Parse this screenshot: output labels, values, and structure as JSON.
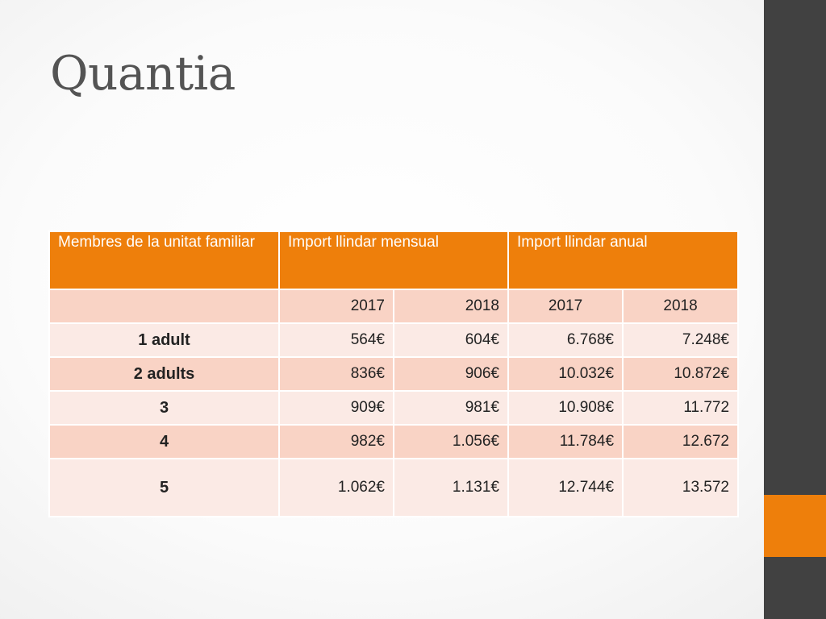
{
  "slide": {
    "title": "Quantia"
  },
  "table": {
    "headers": [
      "Membres de la unitat familiar",
      "Import llindar mensual",
      "Import llindar anual"
    ],
    "years": [
      "",
      "2017",
      "2018",
      "2017",
      "2018"
    ],
    "rows": [
      {
        "label": "1 adult",
        "values": [
          "564€",
          "604€",
          "6.768€",
          "7.248€"
        ]
      },
      {
        "label": "2 adults",
        "values": [
          "836€",
          "906€",
          "10.032€",
          "10.872€"
        ]
      },
      {
        "label": "3",
        "values": [
          "909€",
          "981€",
          "10.908€",
          "11.772"
        ]
      },
      {
        "label": "4",
        "values": [
          "982€",
          "1.056€",
          "11.784€",
          "12.672"
        ]
      },
      {
        "label": "5",
        "values": [
          "1.062€",
          "1.131€",
          "12.744€",
          "13.572"
        ]
      }
    ]
  },
  "colors": {
    "accent": "#ee7f0b",
    "sidebar": "#414141",
    "row_dark": "#f9d3c5",
    "row_light": "#fbeae5"
  }
}
